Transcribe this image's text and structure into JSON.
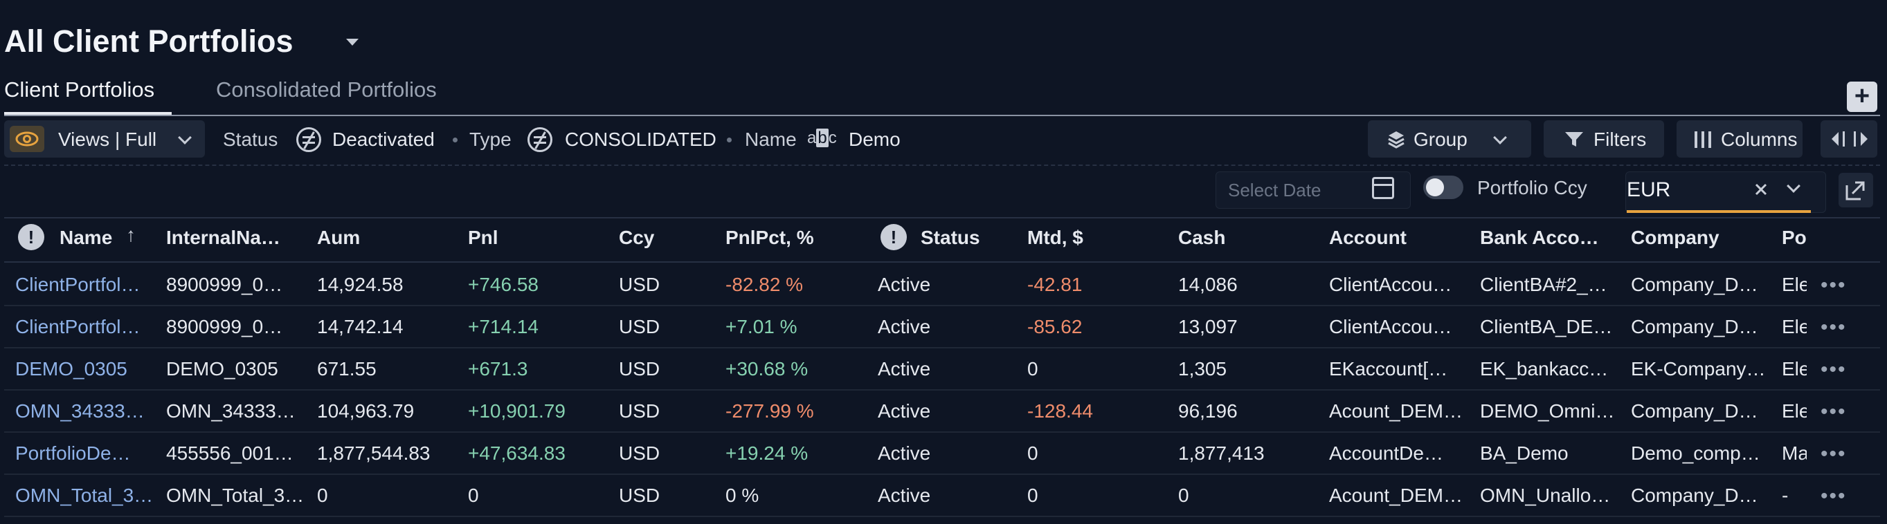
{
  "header": {
    "title": "All Client Portfolios"
  },
  "tabs": [
    {
      "label": "Client Portfolios",
      "active": true
    },
    {
      "label": "Consolidated Portfolios",
      "active": false
    }
  ],
  "add_button": "+",
  "toolbar": {
    "views_label": "Views | Full",
    "filters": [
      {
        "key": "Status",
        "value": "Deactivated",
        "icon": "not-equal-icon"
      },
      {
        "key": "Type",
        "value": "CONSOLIDATED",
        "icon": "not-equal-icon"
      },
      {
        "key": "Name",
        "value": "Demo",
        "icon": "abc-icon"
      }
    ],
    "abc_icon": {
      "a": "a",
      "b": "b",
      "c": "c"
    },
    "group_label": "Group",
    "filters_label": "Filters",
    "columns_label": "Columns"
  },
  "date_picker": {
    "placeholder": "Select Date"
  },
  "portfolio_ccy": {
    "label": "Portfolio Ccy",
    "value": "EUR",
    "toggle_on": false
  },
  "colors": {
    "accent": "#e7a33f",
    "positive": "#86d1b0",
    "negative": "#ef8c6b",
    "link": "#8fb2e8",
    "background": "#0e1524"
  },
  "table": {
    "columns": [
      "Name",
      "InternalNa…",
      "Aum",
      "Pnl",
      "Ccy",
      "PnlPct, %",
      "Status",
      "Mtd, $",
      "Cash",
      "Account",
      "Bank Acco…",
      "Company",
      "Po"
    ],
    "rows": [
      [
        "ClientPortfol…",
        "8900999_0…",
        "14,924.58",
        "+746.58",
        "USD",
        "-82.82 %",
        "Active",
        "-42.81",
        "14,086",
        "ClientAccou…",
        "ClientBA#2_…",
        "Company_D…",
        "Ele"
      ],
      [
        "ClientPortfol…",
        "8900999_0…",
        "14,742.14",
        "+714.14",
        "USD",
        "+7.01 %",
        "Active",
        "-85.62",
        "13,097",
        "ClientAccou…",
        "ClientBA_DE…",
        "Company_D…",
        "Ele"
      ],
      [
        "DEMO_0305",
        "DEMO_0305",
        "671.55",
        "+671.3",
        "USD",
        "+30.68 %",
        "Active",
        "0",
        "1,305",
        "EKaccount[…",
        "EK_bankacc…",
        "EK-Company…",
        "Ele"
      ],
      [
        "OMN_34333…",
        "OMN_34333…",
        "104,963.79",
        "+10,901.79",
        "USD",
        "-277.99 %",
        "Active",
        "-128.44",
        "96,196",
        "Acount_DEM…",
        "DEMO_Omni…",
        "Company_D…",
        "Ele"
      ],
      [
        "PortfolioDe…",
        "455556_001…",
        "1,877,544.83",
        "+47,634.83",
        "USD",
        "+19.24 %",
        "Active",
        "0",
        "1,877,413",
        "AccountDe…",
        "BA_Demo",
        "Demo_comp…",
        "Ma"
      ],
      [
        "OMN_Total_3…",
        "OMN_Total_3…",
        "0",
        "0",
        "USD",
        "0 %",
        "Active",
        "0",
        "0",
        "Acount_DEM…",
        "OMN_Unallo…",
        "Company_D…",
        "-"
      ]
    ],
    "more_label": "•••"
  }
}
